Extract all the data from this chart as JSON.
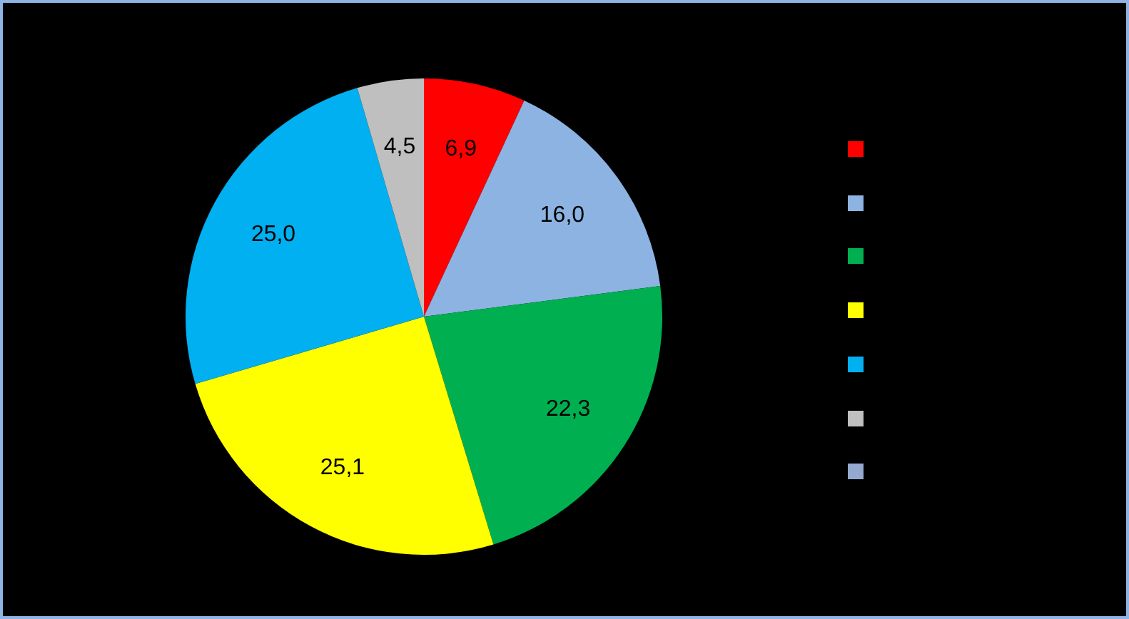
{
  "chart_data": {
    "type": "pie",
    "categories": [
      null,
      null,
      null,
      null,
      null,
      null,
      null
    ],
    "values": [
      6.9,
      16.0,
      22.3,
      25.1,
      25.0,
      4.5,
      0
    ],
    "value_labels": [
      "6,9",
      "16,0",
      "22,3",
      "25,1",
      "25,0",
      "4,5",
      null
    ],
    "colors": [
      "#ff0000",
      "#8db3e2",
      "#00b050",
      "#ffff00",
      "#00b0f0",
      "#bfbfbf",
      "#95a9d0"
    ]
  }
}
